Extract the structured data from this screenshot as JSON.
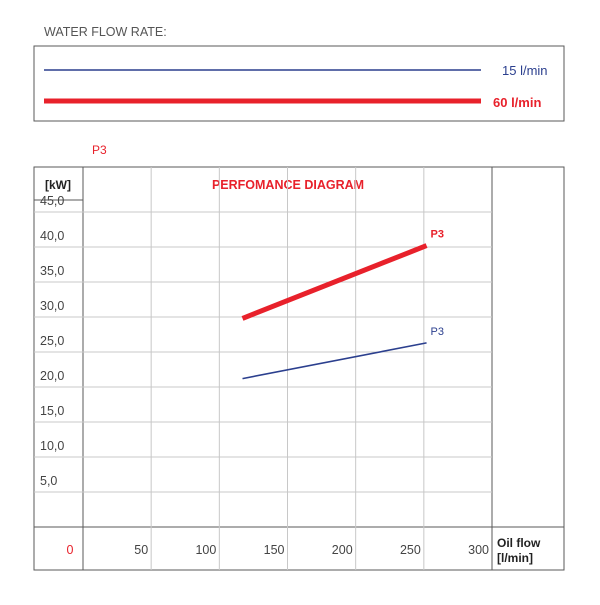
{
  "legend": {
    "heading": "WATER FLOW RATE:",
    "items": [
      {
        "label": "15 l/min",
        "color": "#2b3f8e",
        "bold": false
      },
      {
        "label": "60 l/min",
        "color": "#e8212b",
        "bold": true
      }
    ]
  },
  "top_label": "P3",
  "chart_data": {
    "type": "line",
    "title": "PERFOMANCE DIAGRAM",
    "ylabel": "[kW]",
    "xlabel": [
      "Oil flow",
      "[l/min]"
    ],
    "xlim": [
      0,
      300
    ],
    "ylim": [
      0,
      50
    ],
    "grid": true,
    "y_ticks": [
      "45,0",
      "40,0",
      "35,0",
      "30,0",
      "25,0",
      "20,0",
      "15,0",
      "10,0",
      "5,0"
    ],
    "y_tick_values": [
      45,
      40,
      35,
      30,
      25,
      20,
      15,
      10,
      5
    ],
    "x_ticks": [
      "0",
      "50",
      "100",
      "150",
      "200",
      "250",
      "300"
    ],
    "x_tick_values": [
      0,
      50,
      100,
      150,
      200,
      250,
      300
    ],
    "series": [
      {
        "name": "15 l/min",
        "label": "P3",
        "color": "#2b3f8e",
        "x": [
          117,
          252
        ],
        "y": [
          21.2,
          26.3
        ]
      },
      {
        "name": "60 l/min",
        "label": "P3",
        "color": "#e8212b",
        "x": [
          117,
          252
        ],
        "y": [
          29.8,
          40.2
        ]
      }
    ]
  }
}
